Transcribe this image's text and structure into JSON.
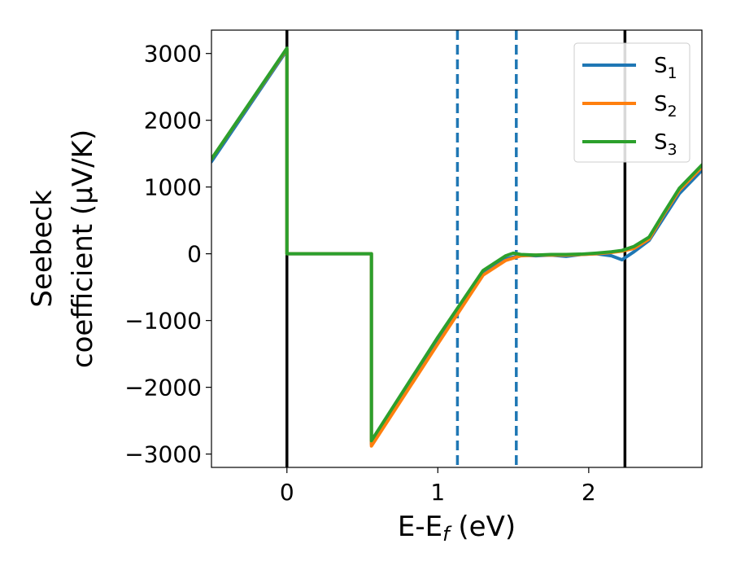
{
  "chart_data": {
    "type": "line",
    "xlabel": "E-E",
    "xlabel_sub": "f",
    "xlabel_unit": " (eV)",
    "ylabel_line1": "Seebeck",
    "ylabel_line2": "coefficient  (μV/K)",
    "xlim": [
      -0.5,
      2.75
    ],
    "ylim": [
      -3200,
      3350
    ],
    "x_ticks": [
      0,
      1,
      2
    ],
    "x_tick_labels": [
      "0",
      "1",
      "2"
    ],
    "y_ticks": [
      -3000,
      -2000,
      -1000,
      0,
      1000,
      2000,
      3000
    ],
    "y_tick_labels": [
      "−3000",
      "−2000",
      "−1000",
      "0",
      "1000",
      "2000",
      "3000"
    ],
    "grid": false,
    "legend_position": "top-right",
    "vertical_lines": [
      {
        "x": 0,
        "style": "solid",
        "color": "#000000"
      },
      {
        "x": 1.13,
        "style": "dashed",
        "color": "#1f77b4"
      },
      {
        "x": 1.52,
        "style": "dashed",
        "color": "#1f77b4"
      },
      {
        "x": 2.24,
        "style": "solid",
        "color": "#000000"
      }
    ],
    "series": [
      {
        "name": "S",
        "sub": "1",
        "color": "#1f77b4",
        "x": [
          -0.5,
          0,
          0,
          0.56,
          0.56,
          1.0,
          1.3,
          1.45,
          1.55,
          1.65,
          1.75,
          1.85,
          1.95,
          2.05,
          2.15,
          2.22,
          2.3,
          2.4,
          2.5,
          2.6,
          2.75
        ],
        "y": [
          1380,
          3050,
          0,
          0,
          -2850,
          -1300,
          -300,
          -80,
          -20,
          -30,
          -20,
          -40,
          -10,
          0,
          -30,
          -90,
          30,
          200,
          550,
          900,
          1250
        ]
      },
      {
        "name": "S",
        "sub": "2",
        "color": "#ff7f0e",
        "x": [
          -0.5,
          0,
          0,
          0.56,
          0.56,
          1.0,
          1.3,
          1.45,
          1.55,
          1.65,
          1.75,
          1.85,
          1.95,
          2.05,
          2.15,
          2.22,
          2.3,
          2.4,
          2.5,
          2.6,
          2.75
        ],
        "y": [
          1420,
          3070,
          0,
          0,
          -2880,
          -1350,
          -320,
          -100,
          -30,
          -20,
          -20,
          -20,
          -10,
          0,
          20,
          40,
          80,
          220,
          600,
          950,
          1300
        ]
      },
      {
        "name": "S",
        "sub": "3",
        "color": "#2ca02c",
        "x": [
          -0.5,
          0,
          0,
          0.56,
          0.56,
          1.0,
          1.3,
          1.45,
          1.5,
          1.55,
          1.65,
          1.75,
          1.85,
          1.95,
          2.05,
          2.15,
          2.22,
          2.3,
          2.4,
          2.5,
          2.6,
          2.75
        ],
        "y": [
          1420,
          3080,
          0,
          0,
          -2800,
          -1250,
          -250,
          -30,
          10,
          -10,
          -20,
          -10,
          -10,
          -5,
          10,
          30,
          50,
          110,
          250,
          620,
          980,
          1330
        ]
      }
    ]
  }
}
